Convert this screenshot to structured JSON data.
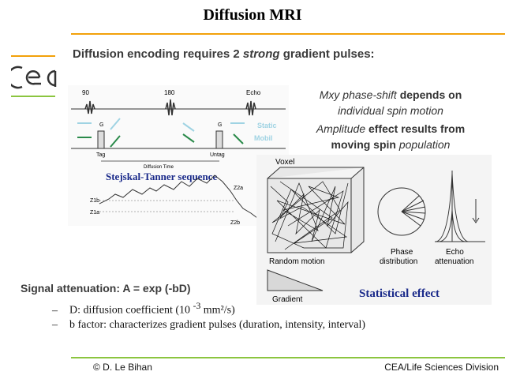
{
  "title": "Diffusion MRI",
  "subtitle_pre": "Diffusion encoding requires 2 ",
  "subtitle_em": "strong",
  "subtitle_post": " gradient pulses:",
  "right_text": {
    "l1_italic": "Mxy phase-shift ",
    "l1_bold": "depends on",
    "l2_italic": "individual spin motion",
    "l3_italic": "Amplitude ",
    "l3_bold": "effect results from",
    "l4_bold": "moving spin ",
    "l4_italic": "population"
  },
  "fig1": {
    "label_90": "90",
    "label_180": "180",
    "label_echo": "Echo",
    "label_g1": "G",
    "label_g2": "G",
    "label_static": "Static",
    "label_mobil": "Mobil",
    "label_tag": "Tag",
    "label_untag": "Untag",
    "label_diffusion_time": "Diffusion Time",
    "caption": "Stejskal-Tanner sequence",
    "z1b": "Z1b",
    "z1a": "Z1a",
    "z2a": "Z2a",
    "z2b": "Z2b"
  },
  "fig2": {
    "voxel": "Voxel",
    "random_motion": "Random motion",
    "phase_distribution_1": "Phase",
    "phase_distribution_2": "distribution",
    "echo_attenuation_1": "Echo",
    "echo_attenuation_2": "attenuation",
    "gradient": "Gradient",
    "caption": "Statistical effect"
  },
  "signal": "Signal attenuation: A = exp (-bD)",
  "bullet1_pre": "D: diffusion coefficient (10 ",
  "bullet1_sup": "-3",
  "bullet1_post": " mm²/s)",
  "bullet2": "b factor: characterizes gradient pulses (duration, intensity, interval)",
  "footer_left": "© D. Le Bihan",
  "footer_right": "CEA/Life Sciences Division",
  "logo_text": "cea",
  "colors": {
    "orange": "#f2a10a",
    "green": "#8bc53f",
    "caption_blue": "#1a2a8a"
  }
}
